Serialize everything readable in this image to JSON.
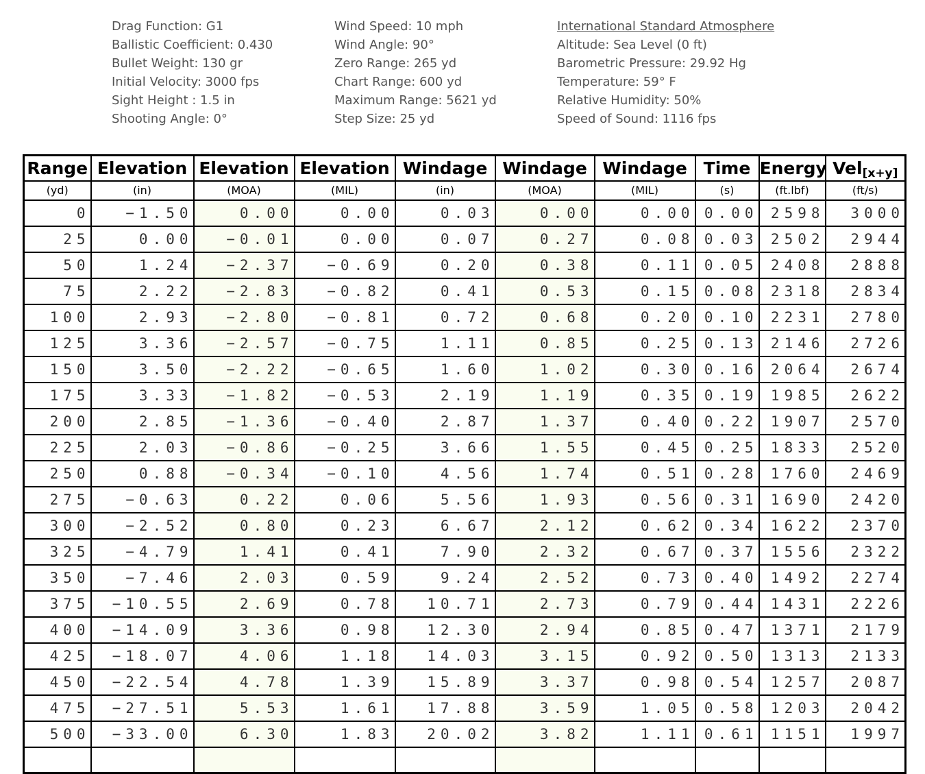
{
  "info": {
    "load": {
      "lines": [
        "Drag Function: G1",
        "Ballistic Coefficient: 0.430",
        "Bullet Weight: 130 gr",
        "Initial Velocity: 3000 fps",
        "Sight Height : 1.5 in",
        "Shooting Angle: 0°"
      ]
    },
    "conditions": {
      "lines": [
        "Wind Speed: 10 mph",
        "Wind Angle: 90°",
        "Zero Range: 265 yd",
        "Chart Range: 600 yd",
        "Maximum Range: 5621 yd",
        "Step Size: 25 yd"
      ]
    },
    "atmosphere": {
      "title": "International Standard Atmosphere",
      "lines": [
        "Altitude: Sea Level (0 ft)",
        "Barometric Pressure: 29.92 Hg",
        "Temperature: 59° F",
        "Relative Humidity: 50%",
        "Speed of Sound: 1116 fps"
      ]
    }
  },
  "table": {
    "headers": [
      {
        "label": "Range",
        "unit": "(yd)"
      },
      {
        "label": "Elevation",
        "unit": "(in)"
      },
      {
        "label": "Elevation",
        "unit": "(MOA)"
      },
      {
        "label": "Elevation",
        "unit": "(MIL)"
      },
      {
        "label": "Windage",
        "unit": "(in)"
      },
      {
        "label": "Windage",
        "unit": "(MOA)"
      },
      {
        "label": "Windage",
        "unit": "(MIL)"
      },
      {
        "label": "Time",
        "unit": "(s)"
      },
      {
        "label": "Energy",
        "unit": "(ft.lbf)"
      },
      {
        "label": "Vel",
        "sub": "[x+y]",
        "unit": "(ft/s)"
      }
    ],
    "highlight_columns": [
      2,
      5
    ],
    "highlight_color": "#fafdf0",
    "rows": [
      [
        "0",
        "−1.50",
        "0.00",
        "0.00",
        "0.03",
        "0.00",
        "0.00",
        "0.00",
        "2598",
        "3000"
      ],
      [
        "25",
        "0.00",
        "−0.01",
        "0.00",
        "0.07",
        "0.27",
        "0.08",
        "0.03",
        "2502",
        "2944"
      ],
      [
        "50",
        "1.24",
        "−2.37",
        "−0.69",
        "0.20",
        "0.38",
        "0.11",
        "0.05",
        "2408",
        "2888"
      ],
      [
        "75",
        "2.22",
        "−2.83",
        "−0.82",
        "0.41",
        "0.53",
        "0.15",
        "0.08",
        "2318",
        "2834"
      ],
      [
        "100",
        "2.93",
        "−2.80",
        "−0.81",
        "0.72",
        "0.68",
        "0.20",
        "0.10",
        "2231",
        "2780"
      ],
      [
        "125",
        "3.36",
        "−2.57",
        "−0.75",
        "1.11",
        "0.85",
        "0.25",
        "0.13",
        "2146",
        "2726"
      ],
      [
        "150",
        "3.50",
        "−2.22",
        "−0.65",
        "1.60",
        "1.02",
        "0.30",
        "0.16",
        "2064",
        "2674"
      ],
      [
        "175",
        "3.33",
        "−1.82",
        "−0.53",
        "2.19",
        "1.19",
        "0.35",
        "0.19",
        "1985",
        "2622"
      ],
      [
        "200",
        "2.85",
        "−1.36",
        "−0.40",
        "2.87",
        "1.37",
        "0.40",
        "0.22",
        "1907",
        "2570"
      ],
      [
        "225",
        "2.03",
        "−0.86",
        "−0.25",
        "3.66",
        "1.55",
        "0.45",
        "0.25",
        "1833",
        "2520"
      ],
      [
        "250",
        "0.88",
        "−0.34",
        "−0.10",
        "4.56",
        "1.74",
        "0.51",
        "0.28",
        "1760",
        "2469"
      ],
      [
        "275",
        "−0.63",
        "0.22",
        "0.06",
        "5.56",
        "1.93",
        "0.56",
        "0.31",
        "1690",
        "2420"
      ],
      [
        "300",
        "−2.52",
        "0.80",
        "0.23",
        "6.67",
        "2.12",
        "0.62",
        "0.34",
        "1622",
        "2370"
      ],
      [
        "325",
        "−4.79",
        "1.41",
        "0.41",
        "7.90",
        "2.32",
        "0.67",
        "0.37",
        "1556",
        "2322"
      ],
      [
        "350",
        "−7.46",
        "2.03",
        "0.59",
        "9.24",
        "2.52",
        "0.73",
        "0.40",
        "1492",
        "2274"
      ],
      [
        "375",
        "−10.55",
        "2.69",
        "0.78",
        "10.71",
        "2.73",
        "0.79",
        "0.44",
        "1431",
        "2226"
      ],
      [
        "400",
        "−14.09",
        "3.36",
        "0.98",
        "12.30",
        "2.94",
        "0.85",
        "0.47",
        "1371",
        "2179"
      ],
      [
        "425",
        "−18.07",
        "4.06",
        "1.18",
        "14.03",
        "3.15",
        "0.92",
        "0.50",
        "1313",
        "2133"
      ],
      [
        "450",
        "−22.54",
        "4.78",
        "1.39",
        "15.89",
        "3.37",
        "0.98",
        "0.54",
        "1257",
        "2087"
      ],
      [
        "475",
        "−27.51",
        "5.53",
        "1.61",
        "17.88",
        "3.59",
        "1.05",
        "0.58",
        "1203",
        "2042"
      ],
      [
        "500",
        "−33.00",
        "6.30",
        "1.83",
        "20.02",
        "3.82",
        "1.11",
        "0.61",
        "1151",
        "1997"
      ]
    ]
  }
}
